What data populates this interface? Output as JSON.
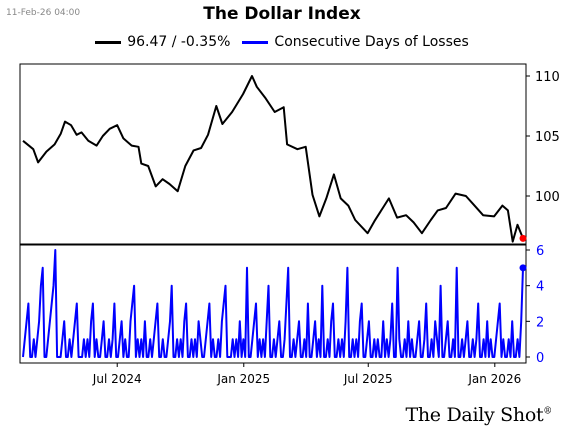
{
  "timestamp": "11-Feb-26 04:00",
  "brand": "The Daily Shot",
  "brand_mark": "®",
  "colors": {
    "index": "#000000",
    "losses": "#0000ff",
    "last_point": "#ff0000",
    "grid": "#000000"
  },
  "chart_data": [
    {
      "type": "line",
      "title": "The Dollar Index",
      "xlabel": "",
      "ylabel": "",
      "x_ticks": [
        "Jul 2024",
        "Jan 2025",
        "Jul 2025",
        "Jan 2026"
      ],
      "x_range": [
        "2024-02-15",
        "2026-02-11"
      ],
      "ylim": [
        96,
        111
      ],
      "y_ticks": [
        100,
        105,
        110
      ],
      "grid": false,
      "legend_position": "top-center",
      "series": [
        {
          "name": "96.47 / -0.35%",
          "last_value": 96.47,
          "points": [
            [
              "2024-02-15",
              104.6
            ],
            [
              "2024-03-01",
              103.9
            ],
            [
              "2024-03-08",
              102.8
            ],
            [
              "2024-03-20",
              103.7
            ],
            [
              "2024-04-01",
              104.3
            ],
            [
              "2024-04-10",
              105.2
            ],
            [
              "2024-04-16",
              106.2
            ],
            [
              "2024-04-25",
              105.9
            ],
            [
              "2024-05-03",
              105.1
            ],
            [
              "2024-05-10",
              105.3
            ],
            [
              "2024-05-20",
              104.6
            ],
            [
              "2024-06-01",
              104.2
            ],
            [
              "2024-06-10",
              105.0
            ],
            [
              "2024-06-20",
              105.6
            ],
            [
              "2024-07-01",
              105.9
            ],
            [
              "2024-07-10",
              104.8
            ],
            [
              "2024-07-22",
              104.2
            ],
            [
              "2024-08-01",
              104.1
            ],
            [
              "2024-08-05",
              102.7
            ],
            [
              "2024-08-15",
              102.5
            ],
            [
              "2024-08-26",
              100.8
            ],
            [
              "2024-09-05",
              101.4
            ],
            [
              "2024-09-15",
              101.0
            ],
            [
              "2024-09-27",
              100.4
            ],
            [
              "2024-10-08",
              102.5
            ],
            [
              "2024-10-20",
              103.8
            ],
            [
              "2024-10-31",
              104.0
            ],
            [
              "2024-11-10",
              105.1
            ],
            [
              "2024-11-22",
              107.5
            ],
            [
              "2024-12-01",
              106.0
            ],
            [
              "2024-12-15",
              107.0
            ],
            [
              "2024-12-31",
              108.5
            ],
            [
              "2025-01-13",
              110.0
            ],
            [
              "2025-01-20",
              109.1
            ],
            [
              "2025-02-01",
              108.2
            ],
            [
              "2025-02-15",
              107.0
            ],
            [
              "2025-02-28",
              107.4
            ],
            [
              "2025-03-05",
              104.3
            ],
            [
              "2025-03-20",
              103.9
            ],
            [
              "2025-04-01",
              104.1
            ],
            [
              "2025-04-11",
              100.1
            ],
            [
              "2025-04-21",
              98.3
            ],
            [
              "2025-05-01",
              99.8
            ],
            [
              "2025-05-12",
              101.8
            ],
            [
              "2025-05-22",
              99.8
            ],
            [
              "2025-06-02",
              99.2
            ],
            [
              "2025-06-12",
              98.0
            ],
            [
              "2025-06-30",
              96.9
            ],
            [
              "2025-07-10",
              97.9
            ],
            [
              "2025-07-31",
              99.8
            ],
            [
              "2025-08-12",
              98.2
            ],
            [
              "2025-08-25",
              98.4
            ],
            [
              "2025-09-05",
              97.8
            ],
            [
              "2025-09-17",
              96.9
            ],
            [
              "2025-09-30",
              98.0
            ],
            [
              "2025-10-10",
              98.8
            ],
            [
              "2025-10-22",
              99.0
            ],
            [
              "2025-11-05",
              100.2
            ],
            [
              "2025-11-20",
              100.0
            ],
            [
              "2025-12-01",
              99.3
            ],
            [
              "2025-12-15",
              98.4
            ],
            [
              "2025-12-31",
              98.3
            ],
            [
              "2026-01-12",
              99.2
            ],
            [
              "2026-01-20",
              98.8
            ],
            [
              "2026-01-27",
              96.2
            ],
            [
              "2026-02-03",
              97.6
            ],
            [
              "2026-02-11",
              96.47
            ]
          ]
        }
      ]
    },
    {
      "type": "line",
      "title": "",
      "xlabel": "",
      "ylabel": "",
      "ylim": [
        0,
        6
      ],
      "y_ticks": [
        0,
        2,
        4,
        6
      ],
      "grid": false,
      "series": [
        {
          "name": "Consecutive Days of Losses",
          "last_value": 5,
          "values": [
            0,
            1,
            2,
            3,
            0,
            0,
            1,
            0,
            1,
            2,
            4,
            5,
            0,
            0,
            1,
            2,
            3,
            4,
            6,
            0,
            0,
            0,
            1,
            2,
            0,
            0,
            1,
            0,
            1,
            2,
            3,
            0,
            0,
            0,
            1,
            0,
            1,
            0,
            2,
            3,
            0,
            1,
            0,
            0,
            1,
            2,
            0,
            0,
            1,
            0,
            1,
            3,
            0,
            0,
            1,
            2,
            0,
            1,
            0,
            0,
            2,
            3,
            4,
            0,
            1,
            0,
            1,
            0,
            2,
            0,
            0,
            1,
            0,
            1,
            2,
            3,
            0,
            0,
            1,
            0,
            0,
            1,
            2,
            4,
            0,
            0,
            1,
            0,
            1,
            0,
            2,
            3,
            0,
            0,
            1,
            0,
            1,
            0,
            2,
            1,
            0,
            0,
            1,
            2,
            3,
            0,
            1,
            0,
            0,
            1,
            0,
            2,
            3,
            4,
            0,
            0,
            0,
            1,
            0,
            1,
            0,
            2,
            0,
            1,
            0,
            5,
            0,
            0,
            1,
            2,
            3,
            0,
            1,
            0,
            1,
            0,
            2,
            4,
            0,
            0,
            1,
            0,
            1,
            2,
            0,
            0,
            1,
            3,
            5,
            0,
            0,
            1,
            0,
            1,
            2,
            0,
            0,
            1,
            0,
            3,
            0,
            0,
            1,
            2,
            0,
            1,
            0,
            4,
            0,
            0,
            1,
            0,
            2,
            3,
            0,
            0,
            1,
            0,
            1,
            0,
            2,
            5,
            0,
            0,
            1,
            0,
            1,
            0,
            2,
            3,
            0,
            0,
            1,
            2,
            0,
            0,
            1,
            0,
            1,
            0,
            0,
            2,
            0,
            1,
            0,
            1,
            3,
            0,
            0,
            5,
            1,
            0,
            0,
            1,
            0,
            2,
            0,
            1,
            0,
            0,
            1,
            2,
            0,
            0,
            1,
            3,
            0,
            0,
            1,
            0,
            2,
            1,
            0,
            4,
            0,
            0,
            1,
            2,
            0,
            0,
            1,
            0,
            5,
            0,
            0,
            1,
            0,
            1,
            2,
            0,
            0,
            1,
            0,
            1,
            3,
            0,
            0,
            1,
            0,
            2,
            0,
            1,
            0,
            0,
            1,
            2,
            3,
            0,
            1,
            0,
            0,
            1,
            0,
            2,
            0,
            0,
            1,
            0,
            2,
            5
          ]
        }
      ]
    }
  ]
}
